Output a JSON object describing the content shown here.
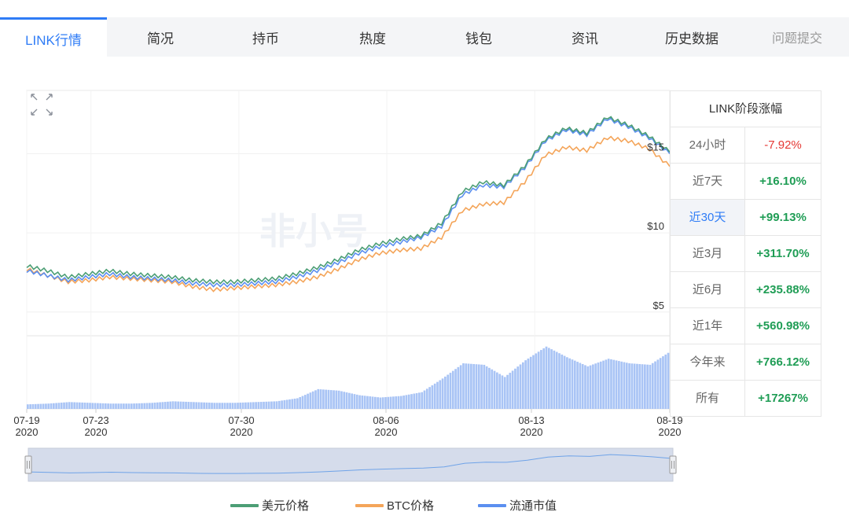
{
  "tabs": [
    {
      "label": "LINK行情",
      "active": true
    },
    {
      "label": "简况"
    },
    {
      "label": "持币"
    },
    {
      "label": "热度"
    },
    {
      "label": "钱包"
    },
    {
      "label": "资讯"
    },
    {
      "label": "历史数据"
    },
    {
      "label": "问题提交",
      "muted": true
    }
  ],
  "stats": {
    "title": "LINK阶段涨幅",
    "rows": [
      {
        "label": "24小时",
        "value": "-7.92%",
        "negative": true
      },
      {
        "label": "近7天",
        "value": "+16.10%"
      },
      {
        "label": "近30天",
        "value": "+99.13%",
        "selected": true
      },
      {
        "label": "近3月",
        "value": "+311.70%"
      },
      {
        "label": "近6月",
        "value": "+235.88%"
      },
      {
        "label": "近1年",
        "value": "+560.98%"
      },
      {
        "label": "今年来",
        "value": "+766.12%"
      },
      {
        "label": "所有",
        "value": "+17267%"
      }
    ]
  },
  "watermark": "非小号",
  "colors": {
    "usd": "#4c9e75",
    "btc": "#f4a55a",
    "mcap": "#5b8ff0",
    "volume": "#a9c4f5",
    "accent": "#2f7cf6"
  },
  "chart_data": {
    "type": "line",
    "y_ticks": [
      "$15",
      "$10",
      "$5"
    ],
    "y_tick_values": [
      15,
      10,
      5
    ],
    "x_ticks": [
      {
        "date": "07-19",
        "year": "2020"
      },
      {
        "date": "07-23",
        "year": "2020"
      },
      {
        "date": "07-30",
        "year": "2020"
      },
      {
        "date": "08-06",
        "year": "2020"
      },
      {
        "date": "08-13",
        "year": "2020"
      },
      {
        "date": "08-19",
        "year": "2020"
      }
    ],
    "x": [
      "07-19",
      "07-20",
      "07-21",
      "07-22",
      "07-23",
      "07-24",
      "07-25",
      "07-26",
      "07-27",
      "07-28",
      "07-29",
      "07-30",
      "07-31",
      "08-01",
      "08-02",
      "08-03",
      "08-04",
      "08-05",
      "08-06",
      "08-07",
      "08-08",
      "08-09",
      "08-10",
      "08-11",
      "08-12",
      "08-13",
      "08-14",
      "08-15",
      "08-16",
      "08-17",
      "08-18",
      "08-19"
    ],
    "series": [
      {
        "name": "美元价格",
        "key": "usd",
        "values": [
          7.9,
          7.6,
          7.2,
          7.4,
          7.6,
          7.4,
          7.3,
          7.2,
          7.0,
          6.9,
          6.9,
          7.0,
          7.1,
          7.4,
          7.8,
          8.3,
          8.9,
          9.3,
          9.6,
          9.8,
          10.6,
          12.6,
          13.2,
          13.0,
          14.2,
          15.9,
          16.6,
          16.3,
          17.3,
          16.8,
          16.1,
          15.1
        ]
      },
      {
        "name": "BTC价格",
        "key": "btc",
        "values": [
          7.7,
          7.3,
          6.9,
          7.0,
          7.2,
          7.1,
          7.0,
          6.9,
          6.6,
          6.4,
          6.5,
          6.6,
          6.7,
          6.9,
          7.2,
          7.7,
          8.3,
          8.7,
          8.9,
          9.0,
          9.7,
          11.4,
          11.8,
          11.9,
          13.2,
          14.9,
          15.4,
          15.2,
          16.0,
          15.8,
          15.3,
          14.2
        ]
      },
      {
        "name": "流通市值",
        "key": "mcap",
        "values": [
          7.6,
          7.3,
          7.0,
          7.2,
          7.4,
          7.2,
          7.1,
          7.0,
          6.8,
          6.7,
          6.7,
          6.8,
          6.9,
          7.2,
          7.6,
          8.1,
          8.7,
          9.1,
          9.4,
          9.7,
          10.4,
          12.4,
          13.0,
          12.9,
          14.1,
          15.8,
          16.5,
          16.2,
          17.2,
          16.7,
          16.0,
          15.0
        ]
      }
    ],
    "volume": [
      6,
      7,
      9,
      8,
      7,
      7,
      8,
      10,
      9,
      8,
      8,
      9,
      10,
      14,
      26,
      24,
      18,
      15,
      17,
      22,
      40,
      60,
      58,
      42,
      64,
      82,
      68,
      56,
      66,
      60,
      58,
      76
    ],
    "legend_position": "bottom",
    "grid": true
  }
}
